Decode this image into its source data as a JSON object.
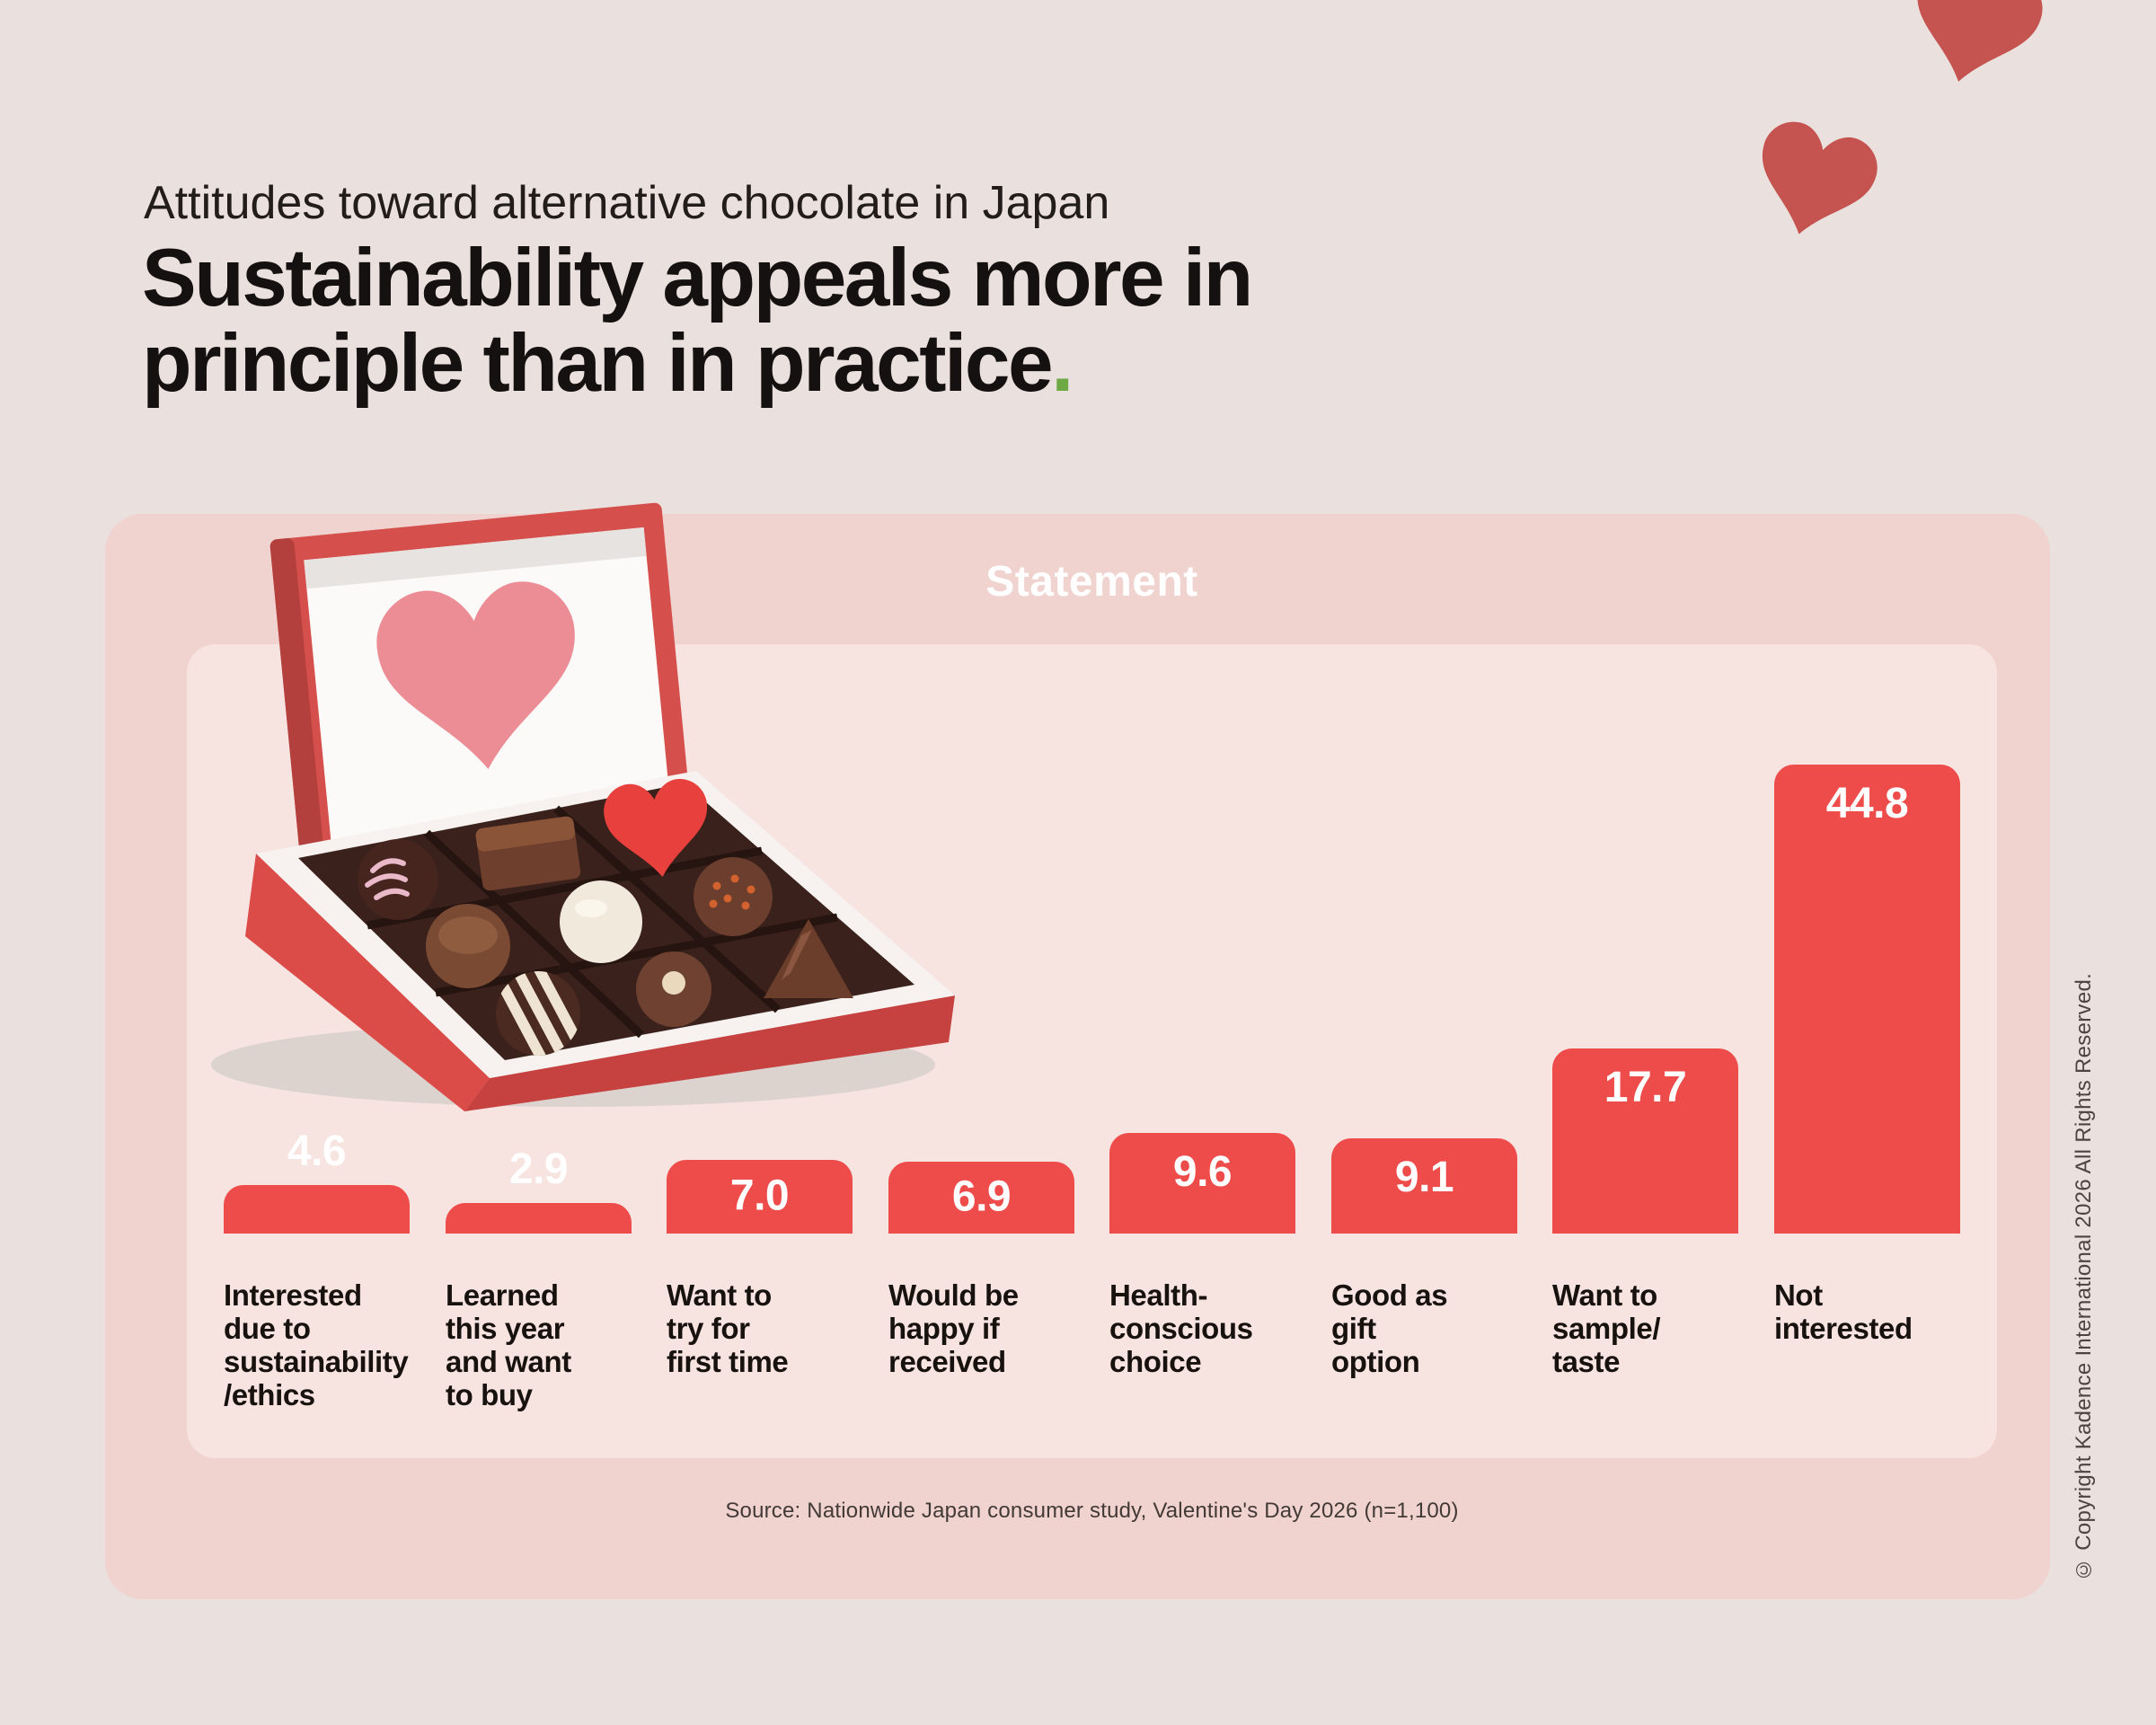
{
  "page": {
    "kicker": "Attitudes toward alternative chocolate in Japan",
    "title": "Sustainability appeals more in\nprinciple than in practice",
    "title_period": ".",
    "background_color": "#eae0dd",
    "accent_green": "#6fa945"
  },
  "panel": {
    "header_label": "Statement",
    "outer_color": "#f0d2cf",
    "inner_color": "#f7e3e0"
  },
  "chart_data": {
    "type": "bar",
    "title": "Statement",
    "categories": [
      "Interested\ndue to\nsustainability\n/ethics",
      "Learned\nthis year\nand want\nto buy",
      "Want to\ntry for\nfirst time",
      "Would be\nhappy if\nreceived",
      "Health-\nconscious\nchoice",
      "Good as\ngift\noption",
      "Want to\nsample/\ntaste",
      "Not\ninterested"
    ],
    "values": [
      4.6,
      2.9,
      7.0,
      6.9,
      9.6,
      9.1,
      17.7,
      44.8
    ],
    "xlabel": "",
    "ylabel": "",
    "ylim": [
      0,
      45
    ],
    "grid": false,
    "legend": null,
    "bar_color": "#ee4c4b",
    "value_label_color": "#ffffff",
    "category_label_color": "#18120f"
  },
  "illustration": {
    "heart_red": "#c5534f",
    "lid_red": "#d5504c",
    "box_red": "#db4b47",
    "lid_heart_pink": "#ec8d95"
  },
  "source": {
    "text": "Source: Nationwide Japan consumer study, Valentine's Day 2026 (n=1,100)"
  },
  "copyright": {
    "text": "© Copyright Kadence International 2026 All Rights Reserved."
  }
}
